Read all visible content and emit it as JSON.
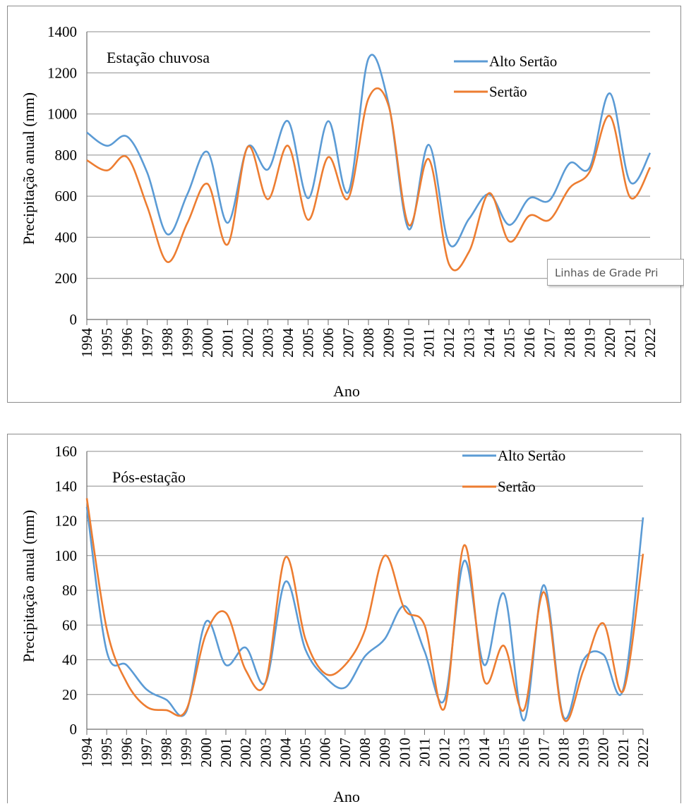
{
  "chart_data": [
    {
      "type": "line",
      "annotation": "Estação chuvosa",
      "xlabel": "Ano",
      "ylabel": "Precipitação anual (mm)",
      "ylim": [
        0,
        1400
      ],
      "yticks": [
        0,
        200,
        400,
        600,
        800,
        1000,
        1200,
        1400
      ],
      "grid": "horizontal",
      "legend": "top-right",
      "x": [
        "1994",
        "1995",
        "1996",
        "1997",
        "1998",
        "1999",
        "2000",
        "2001",
        "2002",
        "2003",
        "2004",
        "2005",
        "2006",
        "2007",
        "2008",
        "2009",
        "2010",
        "2011",
        "2012",
        "2013",
        "2014",
        "2015",
        "2016",
        "2017",
        "2018",
        "2019",
        "2020",
        "2021",
        "2022"
      ],
      "series": [
        {
          "name": "Alto Sertão",
          "color": "#5b9bd5",
          "values": [
            910,
            845,
            890,
            715,
            415,
            610,
            815,
            470,
            840,
            730,
            965,
            590,
            965,
            620,
            1270,
            1050,
            440,
            850,
            370,
            490,
            610,
            460,
            590,
            580,
            760,
            740,
            1100,
            670,
            810
          ]
        },
        {
          "name": "Sertão",
          "color": "#ed7d31",
          "values": [
            775,
            725,
            790,
            550,
            280,
            470,
            660,
            365,
            840,
            585,
            845,
            485,
            790,
            590,
            1075,
            1040,
            460,
            780,
            270,
            330,
            615,
            380,
            505,
            485,
            640,
            720,
            990,
            595,
            740
          ]
        }
      ],
      "tooltip": "Linhas de Grade Pri"
    },
    {
      "type": "line",
      "annotation": "Pós-estação",
      "xlabel": "Ano",
      "ylabel": "Precipitação anual (mm)",
      "ylim": [
        0,
        160
      ],
      "yticks": [
        0,
        20,
        40,
        60,
        80,
        100,
        120,
        140,
        160
      ],
      "grid": "horizontal",
      "legend": "top-right",
      "x": [
        "1994",
        "1995",
        "1996",
        "1997",
        "1998",
        "1999",
        "2000",
        "2001",
        "2002",
        "2003",
        "2004",
        "2005",
        "2006",
        "2007",
        "2008",
        "2009",
        "2010",
        "2011",
        "2012",
        "2013",
        "2014",
        "2015",
        "2016",
        "2017",
        "2018",
        "2019",
        "2020",
        "2021",
        "2022"
      ],
      "series": [
        {
          "name": "Alto Sertão",
          "color": "#5b9bd5",
          "values": [
            128,
            45,
            37,
            23,
            17,
            10,
            62,
            37,
            47,
            27,
            85,
            46,
            30,
            24,
            42,
            52,
            71,
            45,
            17,
            97,
            37,
            78,
            5,
            83,
            7,
            40,
            43,
            23,
            122
          ]
        },
        {
          "name": "Sertão",
          "color": "#ed7d31",
          "values": [
            133,
            58,
            27,
            13,
            11,
            11,
            55,
            67,
            34,
            27,
            99,
            52,
            32,
            37,
            57,
            100,
            69,
            60,
            12,
            106,
            28,
            48,
            11,
            79,
            6,
            34,
            61,
            22,
            101
          ]
        }
      ]
    }
  ]
}
